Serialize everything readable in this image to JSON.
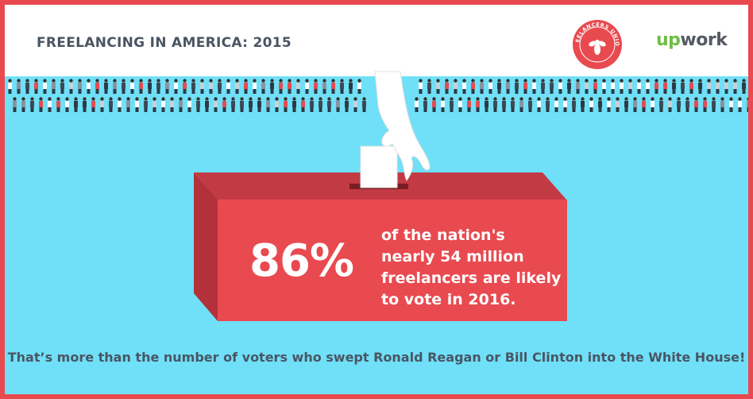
{
  "header": {
    "title": "FREELANCING IN AMERICA: 2015",
    "seal_text": "FREELANCERS UNION",
    "upwork_up": "up",
    "upwork_work": "work"
  },
  "headline": {
    "stat": "86%",
    "lines": [
      "of the nation's",
      "nearly 54 million",
      "freelancers are likely",
      "to vote in 2016."
    ]
  },
  "footer": {
    "text": "That’s more than the number of voters who swept Ronald Reagan or Bill Clinton into the White House!"
  },
  "colors": {
    "border": "#e84a50",
    "background": "#6fe0f8",
    "box_front": "#e84a50",
    "box_top": "#c23a44",
    "box_side": "#b3313b",
    "text_dark": "#4a5563",
    "upwork_green": "#6fbe44"
  },
  "icons": {
    "crowd": "people-crowd-icon",
    "hand": "hand-with-ballot-icon",
    "seal": "bee-seal-icon"
  }
}
